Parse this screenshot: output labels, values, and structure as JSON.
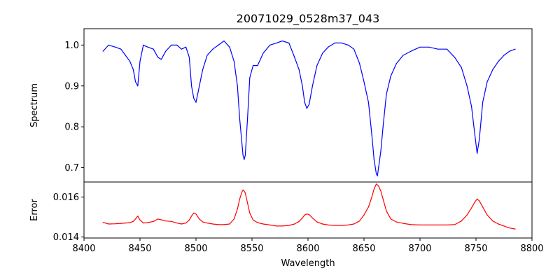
{
  "chart_data": [
    {
      "type": "line",
      "title": "20071029_0528m37_043",
      "xlabel": "",
      "ylabel": "Spectrum",
      "xlim": [
        8400,
        8800
      ],
      "ylim": [
        0.665,
        1.04
      ],
      "yticks": [
        0.7,
        0.8,
        0.9,
        1.0
      ],
      "ytick_labels": [
        "0.7",
        "0.8",
        "0.9",
        "1.0"
      ],
      "show_xtick_labels": false,
      "series": [
        {
          "color": "#0000ff",
          "x": [
            8417,
            8422,
            8428,
            8433,
            8437,
            8441,
            8444,
            8446,
            8448,
            8450,
            8453,
            8457,
            8462,
            8466,
            8469,
            8473,
            8478,
            8483,
            8487,
            8491,
            8494,
            8496,
            8498,
            8500,
            8503,
            8506,
            8510,
            8515,
            8520,
            8525,
            8530,
            8534,
            8537,
            8539,
            8541,
            8542,
            8543,
            8544,
            8546,
            8548,
            8551,
            8555,
            8560,
            8566,
            8572,
            8577,
            8583,
            8588,
            8592,
            8595,
            8597,
            8599,
            8601,
            8604,
            8608,
            8613,
            8618,
            8624,
            8630,
            8636,
            8641,
            8646,
            8650,
            8654,
            8657,
            8659,
            8661,
            8662,
            8663,
            8665,
            8667,
            8670,
            8674,
            8679,
            8685,
            8692,
            8700,
            8708,
            8716,
            8724,
            8731,
            8737,
            8742,
            8746,
            8749,
            8751,
            8753,
            8756,
            8760,
            8765,
            8770,
            8775,
            8780,
            8785
          ],
          "y": [
            0.985,
            1.0,
            0.995,
            0.99,
            0.975,
            0.96,
            0.94,
            0.91,
            0.9,
            0.96,
            1.0,
            0.995,
            0.99,
            0.97,
            0.965,
            0.985,
            1.0,
            1.0,
            0.99,
            0.995,
            0.97,
            0.9,
            0.87,
            0.86,
            0.9,
            0.94,
            0.975,
            0.99,
            1.0,
            1.01,
            0.995,
            0.96,
            0.9,
            0.82,
            0.76,
            0.73,
            0.72,
            0.73,
            0.82,
            0.92,
            0.95,
            0.95,
            0.98,
            1.0,
            1.005,
            1.01,
            1.005,
            0.97,
            0.94,
            0.9,
            0.86,
            0.845,
            0.855,
            0.9,
            0.95,
            0.98,
            0.995,
            1.005,
            1.005,
            1.0,
            0.99,
            0.955,
            0.91,
            0.86,
            0.78,
            0.72,
            0.685,
            0.68,
            0.7,
            0.74,
            0.8,
            0.88,
            0.925,
            0.955,
            0.975,
            0.985,
            0.995,
            0.995,
            0.99,
            0.99,
            0.97,
            0.945,
            0.9,
            0.85,
            0.78,
            0.735,
            0.77,
            0.86,
            0.91,
            0.94,
            0.96,
            0.975,
            0.985,
            0.99
          ]
        }
      ]
    },
    {
      "type": "line",
      "title": "",
      "xlabel": "Wavelength",
      "ylabel": "Error",
      "xlim": [
        8400,
        8800
      ],
      "ylim": [
        0.01395,
        0.01675
      ],
      "xticks": [
        8400,
        8450,
        8500,
        8550,
        8600,
        8650,
        8700,
        8750,
        8800
      ],
      "xtick_labels": [
        "8400",
        "8450",
        "8500",
        "8550",
        "8600",
        "8650",
        "8700",
        "8750",
        "8800"
      ],
      "yticks": [
        0.014,
        0.016
      ],
      "ytick_labels": [
        "0.014",
        "0.016"
      ],
      "series": [
        {
          "color": "#ff0000",
          "x": [
            8417,
            8422,
            8428,
            8433,
            8437,
            8441,
            8444,
            8446,
            8448,
            8450,
            8453,
            8457,
            8462,
            8466,
            8469,
            8473,
            8478,
            8483,
            8487,
            8491,
            8494,
            8496,
            8498,
            8500,
            8503,
            8506,
            8510,
            8515,
            8520,
            8525,
            8530,
            8534,
            8537,
            8539,
            8541,
            8542,
            8543,
            8544,
            8546,
            8548,
            8551,
            8555,
            8560,
            8566,
            8572,
            8577,
            8583,
            8588,
            8592,
            8595,
            8597,
            8599,
            8601,
            8604,
            8608,
            8613,
            8618,
            8624,
            8630,
            8636,
            8641,
            8646,
            8650,
            8654,
            8657,
            8659,
            8661,
            8662,
            8663,
            8665,
            8667,
            8670,
            8674,
            8679,
            8685,
            8692,
            8700,
            8708,
            8716,
            8724,
            8731,
            8737,
            8742,
            8746,
            8749,
            8751,
            8753,
            8756,
            8760,
            8765,
            8770,
            8775,
            8780,
            8785
          ],
          "y": [
            0.01473,
            0.01465,
            0.01466,
            0.01468,
            0.0147,
            0.01472,
            0.01478,
            0.0149,
            0.01505,
            0.01485,
            0.0147,
            0.01472,
            0.01478,
            0.0149,
            0.01486,
            0.0148,
            0.01478,
            0.0147,
            0.01465,
            0.0147,
            0.01485,
            0.01505,
            0.0152,
            0.01515,
            0.0149,
            0.01475,
            0.0147,
            0.01465,
            0.01462,
            0.01462,
            0.01465,
            0.0149,
            0.0154,
            0.0159,
            0.01625,
            0.01635,
            0.0163,
            0.0162,
            0.0157,
            0.0152,
            0.01485,
            0.01472,
            0.01465,
            0.0146,
            0.01455,
            0.01455,
            0.01458,
            0.01465,
            0.01478,
            0.01495,
            0.0151,
            0.01515,
            0.01512,
            0.01495,
            0.01475,
            0.01465,
            0.0146,
            0.01458,
            0.01458,
            0.0146,
            0.01465,
            0.0148,
            0.0151,
            0.0155,
            0.016,
            0.0164,
            0.01665,
            0.0166,
            0.01655,
            0.0163,
            0.0159,
            0.0153,
            0.0149,
            0.01475,
            0.01468,
            0.01462,
            0.0146,
            0.0146,
            0.0146,
            0.0146,
            0.01462,
            0.0148,
            0.0151,
            0.01545,
            0.01575,
            0.0159,
            0.0158,
            0.0155,
            0.0151,
            0.0148,
            0.01465,
            0.01455,
            0.01445,
            0.0144
          ]
        }
      ]
    }
  ]
}
